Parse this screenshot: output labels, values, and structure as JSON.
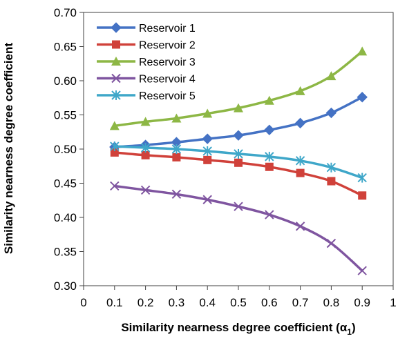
{
  "chart_data": {
    "type": "line",
    "title": "",
    "xlabel": "Similarity nearness degree coefficient (α",
    "xlabel_subscript": "1",
    "xlabel_close": ")",
    "ylabel": "Similarity nearness degree coefficient",
    "xlim": [
      0,
      1
    ],
    "ylim": [
      0.3,
      0.7
    ],
    "x_ticks": [
      "0",
      "0.1",
      "0.2",
      "0.3",
      "0.4",
      "0.5",
      "0.6",
      "0.7",
      "0.8",
      "0.9",
      "1"
    ],
    "y_ticks": [
      "0.30",
      "0.35",
      "0.40",
      "0.45",
      "0.50",
      "0.55",
      "0.60",
      "0.65",
      "0.70"
    ],
    "grid": false,
    "legend_position": "top-left",
    "x": [
      0.1,
      0.2,
      0.3,
      0.4,
      0.5,
      0.6,
      0.7,
      0.8,
      0.9
    ],
    "series": [
      {
        "name": "Reservoir 1",
        "color": "#4472C4",
        "marker": "diamond",
        "values": [
          0.503,
          0.506,
          0.51,
          0.515,
          0.52,
          0.528,
          0.538,
          0.553,
          0.576
        ]
      },
      {
        "name": "Reservoir 2",
        "color": "#D0413A",
        "marker": "square",
        "values": [
          0.495,
          0.491,
          0.488,
          0.484,
          0.48,
          0.474,
          0.465,
          0.453,
          0.432
        ]
      },
      {
        "name": "Reservoir 3",
        "color": "#8DB745",
        "marker": "triangle",
        "values": [
          0.534,
          0.54,
          0.545,
          0.552,
          0.56,
          0.571,
          0.585,
          0.607,
          0.643
        ]
      },
      {
        "name": "Reservoir 4",
        "color": "#7F55A0",
        "marker": "x",
        "values": [
          0.446,
          0.44,
          0.434,
          0.426,
          0.416,
          0.404,
          0.387,
          0.362,
          0.322
        ]
      },
      {
        "name": "Reservoir 5",
        "color": "#3FA7C9",
        "marker": "star",
        "values": [
          0.504,
          0.502,
          0.5,
          0.497,
          0.493,
          0.489,
          0.483,
          0.473,
          0.458
        ]
      }
    ]
  }
}
